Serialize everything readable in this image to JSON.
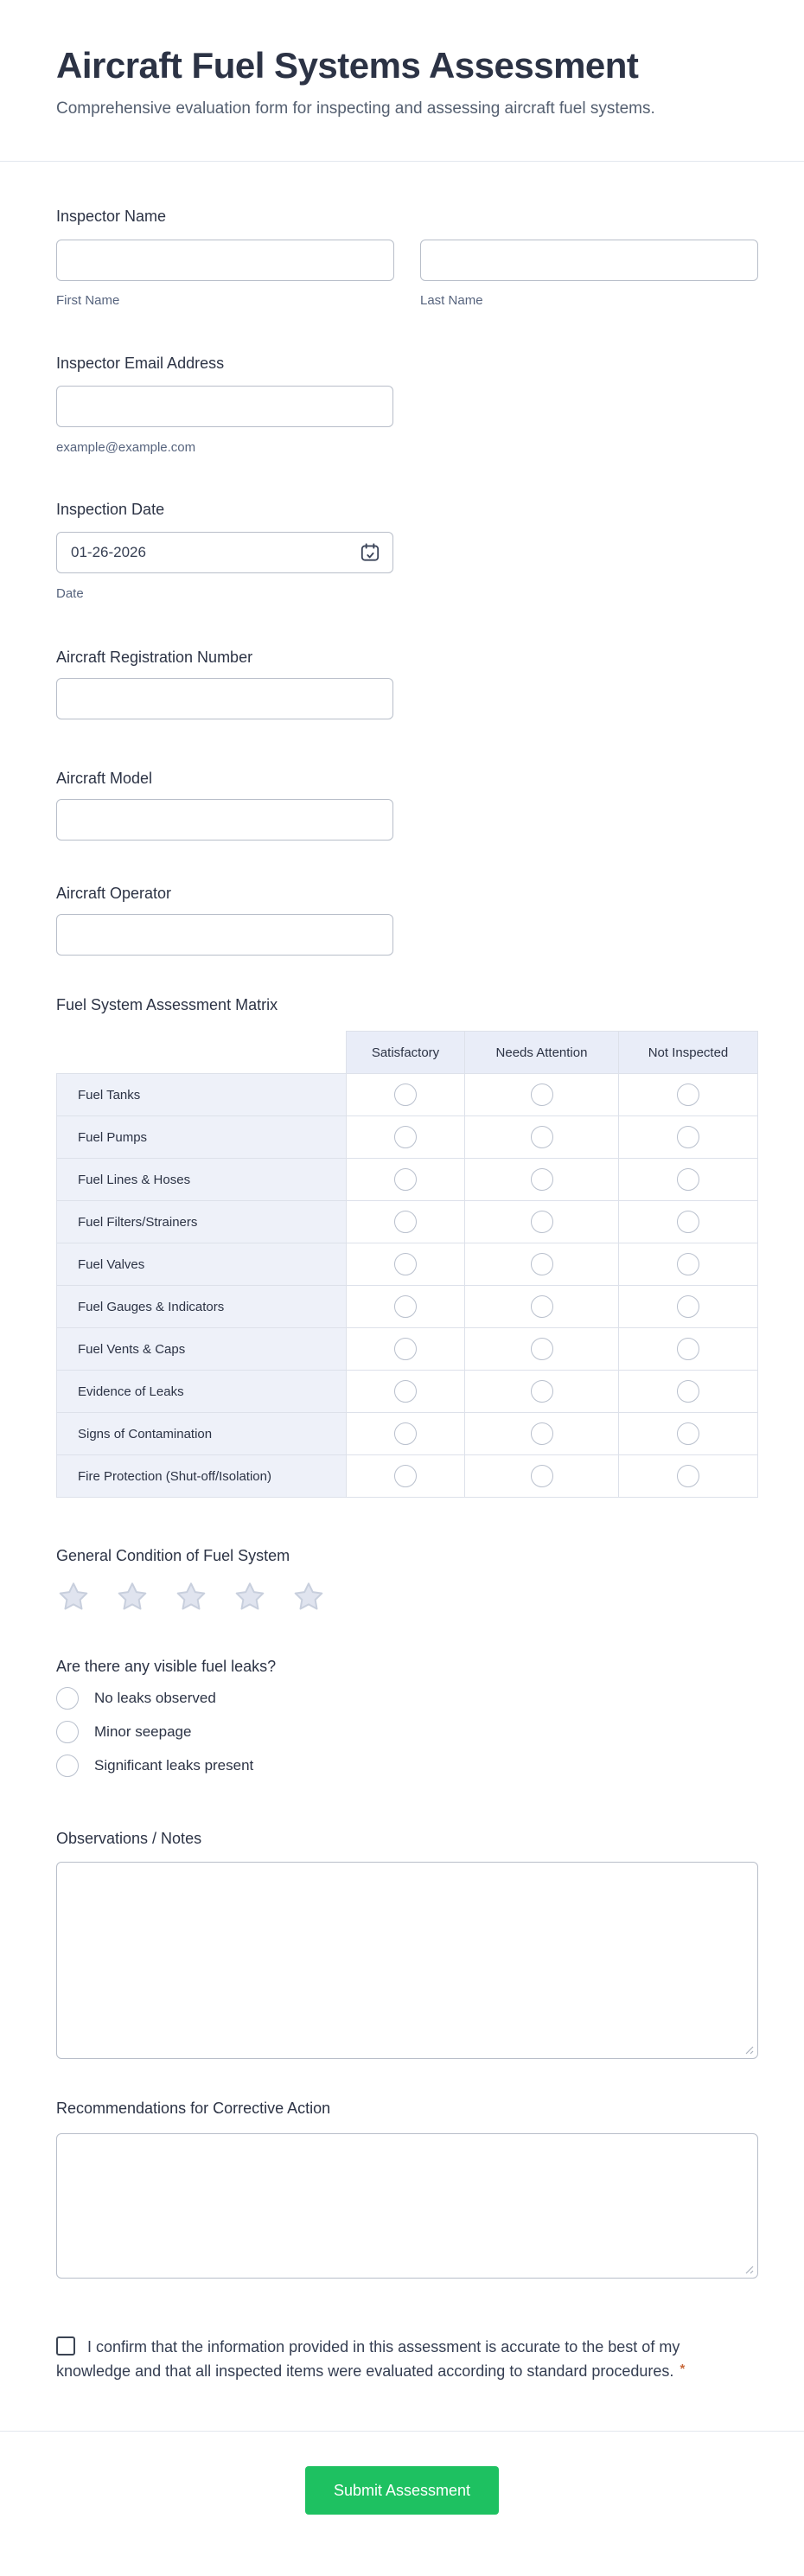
{
  "header": {
    "title": "Aircraft Fuel Systems Assessment",
    "subtitle": "Comprehensive evaluation form for inspecting and assessing aircraft fuel systems."
  },
  "fields": {
    "inspector_name": {
      "label": "Inspector Name",
      "first": {
        "value": "",
        "sublabel": "First Name"
      },
      "last": {
        "value": "",
        "sublabel": "Last Name"
      }
    },
    "email": {
      "label": "Inspector Email Address",
      "value": "",
      "sublabel": "example@example.com"
    },
    "date": {
      "label": "Inspection Date",
      "value": "01-26-2026",
      "sublabel": "Date",
      "icon": "calendar-check-icon"
    },
    "registration": {
      "label": "Aircraft Registration Number",
      "value": ""
    },
    "model": {
      "label": "Aircraft Model",
      "value": ""
    },
    "operator": {
      "label": "Aircraft Operator",
      "value": ""
    }
  },
  "matrix": {
    "label": "Fuel System Assessment Matrix",
    "columns": [
      "Satisfactory",
      "Needs Attention",
      "Not Inspected"
    ],
    "rows": [
      "Fuel Tanks",
      "Fuel Pumps",
      "Fuel Lines & Hoses",
      "Fuel Filters/Strainers",
      "Fuel Valves",
      "Fuel Gauges & Indicators",
      "Fuel Vents & Caps",
      "Evidence of Leaks",
      "Signs of Contamination",
      "Fire Protection (Shut-off/Isolation)"
    ],
    "selected": null
  },
  "rating": {
    "label": "General Condition of Fuel System",
    "stars": 5,
    "value": 0
  },
  "leaks": {
    "label": "Are there any visible fuel leaks?",
    "options": [
      "No leaks observed",
      "Minor seepage",
      "Significant leaks present"
    ],
    "selected": null
  },
  "observations": {
    "label": "Observations / Notes",
    "value": ""
  },
  "recommendations": {
    "label": "Recommendations for Corrective Action",
    "value": ""
  },
  "confirmation": {
    "text": "I confirm that the information provided in this assessment is accurate to the best of my knowledge and that all inspected items were evaluated according to standard procedures.",
    "required_marker": "*",
    "checked": false
  },
  "submit": {
    "label": "Submit Assessment"
  },
  "colors": {
    "submit_green": "#1EC161",
    "required_asterisk": "#C86A3C",
    "matrix_header_bg": "#E9EDF8",
    "matrix_label_bg": "#EEF1F9",
    "star_fill": "#E0E4EF",
    "label_text": "#2C3345",
    "sublabel_text": "#57647E"
  }
}
